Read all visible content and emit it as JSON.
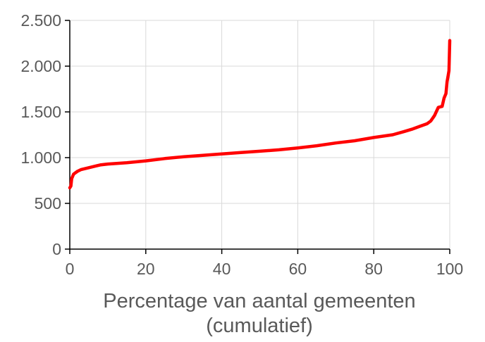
{
  "chart_data": {
    "type": "line",
    "title": "",
    "xlabel_lines": [
      "Percentage van aantal gemeenten",
      "(cumulatief)"
    ],
    "ylabel": "",
    "xlim": [
      0,
      100
    ],
    "ylim": [
      0,
      2500
    ],
    "grid": true,
    "legend": "none",
    "x_ticks": [
      {
        "value": 0,
        "label": "0"
      },
      {
        "value": 20,
        "label": "20"
      },
      {
        "value": 40,
        "label": "40"
      },
      {
        "value": 60,
        "label": "60"
      },
      {
        "value": 80,
        "label": "80"
      },
      {
        "value": 100,
        "label": "100"
      }
    ],
    "y_ticks": [
      {
        "value": 0,
        "label": "0"
      },
      {
        "value": 500,
        "label": "500"
      },
      {
        "value": 1000,
        "label": "1.000"
      },
      {
        "value": 1500,
        "label": "1.500"
      },
      {
        "value": 2000,
        "label": "2.000"
      },
      {
        "value": 2500,
        "label": "2.500"
      }
    ],
    "series": [
      {
        "color": "#ff0000",
        "x": [
          0,
          0.3,
          0.5,
          1,
          2,
          3,
          5,
          7,
          8,
          10,
          15,
          20,
          25,
          30,
          35,
          40,
          45,
          50,
          55,
          60,
          65,
          70,
          75,
          80,
          85,
          88,
          90,
          92,
          94,
          95,
          96,
          97,
          98,
          98.5,
          99,
          99.3,
          99.6,
          99.8,
          100
        ],
        "y": [
          670,
          690,
          770,
          820,
          850,
          870,
          890,
          910,
          920,
          930,
          945,
          965,
          990,
          1010,
          1025,
          1040,
          1055,
          1070,
          1085,
          1105,
          1130,
          1160,
          1185,
          1220,
          1250,
          1285,
          1310,
          1340,
          1370,
          1400,
          1460,
          1550,
          1560,
          1650,
          1700,
          1830,
          1900,
          1950,
          2280
        ]
      }
    ]
  },
  "colors": {
    "series_line": "#ff0000",
    "grid": "#d9d9d9",
    "axis": "#000000",
    "text": "#595959"
  }
}
